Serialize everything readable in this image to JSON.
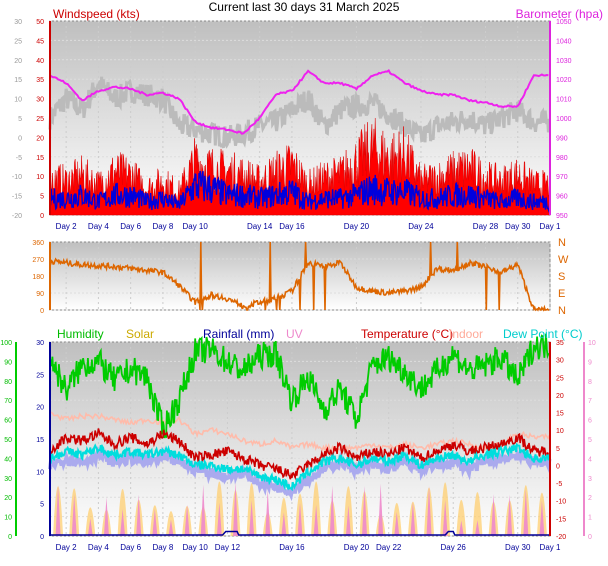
{
  "title": "Current last 30 days 31 March 2025",
  "colors": {
    "wind": "#dd0000",
    "gust": "#ff0000",
    "avg": "#0000dd",
    "baro": "#ee22ee",
    "grey": "#bbbbbb",
    "dir": "#dd6600",
    "humidity": "#00cc00",
    "solar": "#ccaa00",
    "rain": "#000099",
    "uv": "#ee88cc",
    "temperature": "#cc0000",
    "indoor": "#ffbbaa",
    "dewpoint": "#00dddd",
    "dewband": "#aaaaee"
  },
  "chart_data": [
    {
      "type": "line",
      "name": "wind-baro",
      "left_axis_label": "Windspeed (kts)",
      "right_axis_label": "Barometer (hpa)",
      "left_ticks": [
        0,
        5,
        10,
        15,
        20,
        25,
        30,
        35,
        40,
        45,
        50
      ],
      "outer_ticks": [
        -20,
        -15,
        -10,
        -5,
        0,
        5,
        10,
        15,
        20,
        25,
        30
      ],
      "right_ticks": [
        950,
        960,
        970,
        980,
        990,
        1000,
        1010,
        1020,
        1030,
        1040,
        1050
      ],
      "ylim": [
        0,
        50
      ],
      "baro_ylim": [
        950,
        1050
      ],
      "x_ticks": [
        "Day 2",
        "Day 4",
        "Day 6",
        "Day 8",
        "Day 10",
        "Day 14",
        "Day 16",
        "Day 20",
        "Day 24",
        "Day 28",
        "Day 30",
        "Day 1"
      ],
      "x_tick_days": [
        2,
        4,
        6,
        8,
        10,
        14,
        16,
        20,
        24,
        28,
        30,
        32
      ],
      "series": [
        {
          "key": "baro",
          "days": [
            1,
            2,
            3,
            4,
            5,
            6,
            7,
            8,
            9,
            10,
            11,
            12,
            13,
            14,
            15,
            16,
            17,
            18,
            19,
            20,
            21,
            22,
            23,
            24,
            25,
            26,
            27,
            28,
            29,
            30,
            31
          ],
          "values": [
            1022,
            1018,
            1009,
            1014,
            1016,
            1015,
            1012,
            1013,
            1010,
            998,
            995,
            994,
            992,
            1000,
            1012,
            1014,
            1024,
            1018,
            1018,
            1015,
            1022,
            1024,
            1018,
            1014,
            1012,
            1012,
            1009,
            1008,
            1006,
            1006,
            1022
          ]
        },
        {
          "key": "grey",
          "days": [
            1,
            2,
            3,
            4,
            5,
            6,
            7,
            8,
            9,
            10,
            11,
            12,
            13,
            14,
            15,
            16,
            17,
            18,
            19,
            20,
            21,
            22,
            23,
            24,
            25,
            26,
            27,
            28,
            29,
            30,
            31
          ],
          "values": [
            25,
            30,
            27,
            34,
            30,
            32,
            31,
            30,
            23,
            22,
            21,
            20,
            21,
            23,
            24,
            27,
            30,
            23,
            27,
            28,
            29,
            26,
            23,
            20,
            23,
            24,
            25,
            23,
            25,
            27,
            24
          ]
        },
        {
          "key": "gust",
          "days": [
            1,
            2,
            3,
            4,
            5,
            6,
            7,
            8,
            9,
            10,
            11,
            12,
            13,
            14,
            15,
            16,
            17,
            18,
            19,
            20,
            21,
            22,
            23,
            24,
            25,
            26,
            27,
            28,
            29,
            30,
            31
          ],
          "values": [
            11,
            10,
            12,
            9,
            13,
            12,
            8,
            10,
            7,
            16,
            14,
            13,
            12,
            10,
            13,
            15,
            9,
            11,
            12,
            16,
            20,
            17,
            18,
            10,
            11,
            13,
            14,
            11,
            10,
            12,
            9
          ]
        },
        {
          "key": "avg",
          "days": [
            1,
            2,
            3,
            4,
            5,
            6,
            7,
            8,
            9,
            10,
            11,
            12,
            13,
            14,
            15,
            16,
            17,
            18,
            19,
            20,
            21,
            22,
            23,
            24,
            25,
            26,
            27,
            28,
            29,
            30,
            31
          ],
          "values": [
            5,
            5,
            6,
            4,
            6,
            6,
            4,
            5,
            3,
            9,
            8,
            6,
            6,
            5,
            6,
            7,
            4,
            5,
            5,
            6,
            8,
            7,
            7,
            5,
            5,
            6,
            6,
            5,
            4,
            5,
            4
          ]
        }
      ]
    },
    {
      "type": "line",
      "name": "wind-direction",
      "left_ticks": [
        0,
        90,
        180,
        270,
        360
      ],
      "right_labels": [
        "N",
        "W",
        "S",
        "E",
        "N"
      ],
      "ylim": [
        0,
        360
      ],
      "series": [
        {
          "key": "dir",
          "days": [
            1,
            2,
            3,
            4,
            5,
            6,
            7,
            8,
            9,
            10,
            11,
            12,
            13,
            14,
            15,
            16,
            17,
            18,
            19,
            20,
            21,
            22,
            23,
            24,
            25,
            26,
            27,
            28,
            29,
            30,
            31
          ],
          "values": [
            260,
            250,
            240,
            235,
            230,
            220,
            210,
            200,
            130,
            40,
            80,
            60,
            20,
            40,
            60,
            100,
            250,
            230,
            250,
            120,
            100,
            90,
            100,
            120,
            220,
            210,
            250,
            230,
            200,
            240,
            0
          ]
        }
      ]
    },
    {
      "type": "line",
      "name": "temp-humidity",
      "labels": {
        "humidity": "Humidity",
        "solar": "Solar",
        "rainfall": "Rainfall (mm)",
        "uv": "UV",
        "temperature": "Temperature (°C)",
        "indoor": "Indoor",
        "dewpoint": "Dew Point (°C)"
      },
      "humidity_ticks": [
        0,
        10,
        20,
        30,
        40,
        50,
        60,
        70,
        80,
        90,
        100
      ],
      "rain_ticks": [
        0,
        5,
        10,
        15,
        20,
        25,
        30
      ],
      "temp_ticks": [
        -20,
        -15,
        -10,
        -5,
        0,
        5,
        10,
        15,
        20,
        25,
        30,
        35
      ],
      "uv_ticks": [
        0,
        1,
        2,
        3,
        4,
        5,
        6,
        7,
        8,
        9,
        10
      ],
      "temp_ylim": [
        -20,
        35
      ],
      "x_ticks": [
        "Day 2",
        "Day 4",
        "Day 6",
        "Day 8",
        "Day 10",
        "Day 12",
        "Day 16",
        "Day 20",
        "Day 22",
        "Day 26",
        "Day 30",
        "Day 1"
      ],
      "x_tick_days": [
        2,
        4,
        6,
        8,
        10,
        12,
        16,
        20,
        22,
        26,
        30,
        32
      ],
      "series": [
        {
          "key": "humidity",
          "days": [
            1,
            2,
            3,
            4,
            5,
            6,
            7,
            8,
            9,
            10,
            11,
            12,
            13,
            14,
            15,
            16,
            17,
            18,
            19,
            20,
            21,
            22,
            23,
            24,
            25,
            26,
            27,
            28,
            29,
            30,
            31
          ],
          "values": [
            92,
            75,
            88,
            90,
            80,
            86,
            82,
            55,
            70,
            95,
            96,
            90,
            85,
            93,
            94,
            70,
            82,
            65,
            76,
            60,
            88,
            92,
            85,
            76,
            85,
            94,
            85,
            88,
            92,
            80,
            98
          ]
        },
        {
          "key": "indoor",
          "days": [
            1,
            2,
            3,
            4,
            5,
            6,
            7,
            8,
            9,
            10,
            11,
            12,
            13,
            14,
            15,
            16,
            17,
            18,
            19,
            20,
            21,
            22,
            23,
            24,
            25,
            26,
            27,
            28,
            29,
            30,
            31
          ],
          "values": [
            15,
            13,
            14,
            14,
            13,
            12,
            13,
            12,
            13,
            9,
            10,
            9,
            7,
            6,
            7,
            5,
            6,
            5,
            5,
            5,
            6,
            5,
            6,
            5,
            6,
            7,
            6,
            5,
            6,
            9,
            8
          ]
        },
        {
          "key": "temperature",
          "days": [
            1,
            2,
            3,
            4,
            5,
            6,
            7,
            8,
            9,
            10,
            11,
            12,
            13,
            14,
            15,
            16,
            17,
            18,
            19,
            20,
            21,
            22,
            23,
            24,
            25,
            26,
            27,
            28,
            29,
            30,
            31
          ],
          "values": [
            4,
            8,
            7,
            9,
            6,
            8,
            6,
            9,
            7,
            2,
            3,
            4,
            2,
            0,
            -1,
            -3,
            0,
            3,
            5,
            2,
            4,
            3,
            5,
            2,
            4,
            6,
            4,
            5,
            6,
            8,
            4
          ]
        },
        {
          "key": "dewband",
          "days": [
            1,
            2,
            3,
            4,
            5,
            6,
            7,
            8,
            9,
            10,
            11,
            12,
            13,
            14,
            15,
            16,
            17,
            18,
            19,
            20,
            21,
            22,
            23,
            24,
            25,
            26,
            27,
            28,
            29,
            30,
            31
          ],
          "values": [
            0,
            2,
            1,
            3,
            1,
            2,
            1,
            2,
            1,
            -1,
            -2,
            -3,
            -2,
            -5,
            -6,
            -7,
            -4,
            -1,
            1,
            -1,
            0,
            -1,
            1,
            -1,
            0,
            1,
            -1,
            1,
            2,
            3,
            1
          ]
        },
        {
          "key": "dewpoint",
          "days": [
            1,
            2,
            3,
            4,
            5,
            6,
            7,
            8,
            9,
            10,
            11,
            12,
            13,
            14,
            15,
            16,
            17,
            18,
            19,
            20,
            21,
            22,
            23,
            24,
            25,
            26,
            27,
            28,
            29,
            30,
            31
          ],
          "values": [
            2,
            4,
            3,
            5,
            3,
            4,
            3,
            4,
            3,
            0,
            0,
            -1,
            -1,
            -3,
            -4,
            -6,
            -2,
            1,
            2,
            0,
            2,
            1,
            3,
            0,
            2,
            3,
            1,
            3,
            4,
            5,
            2
          ]
        }
      ]
    }
  ]
}
